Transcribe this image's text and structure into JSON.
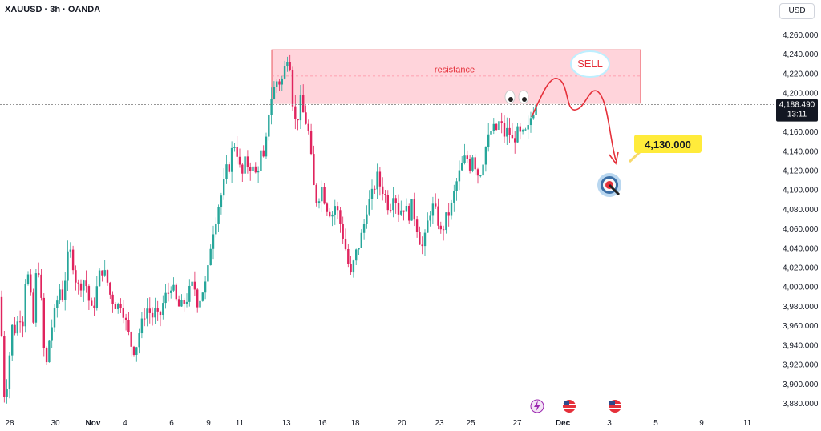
{
  "header": {
    "symbol": "XAUUSD · 3h · OANDA",
    "currency": "USD"
  },
  "price_tag": {
    "price": "4,188.490",
    "countdown": "13:11"
  },
  "annotations": {
    "zone_label": "resistance",
    "bubble": "SELL",
    "target": "4,130.000",
    "eyes_icon": "eyes-emoji",
    "target_icon": "dart-target-emoji",
    "event_icons": [
      "lightning-icon",
      "us-flag-icon",
      "us-flag-icon"
    ]
  },
  "colors": {
    "up": "#26a69a",
    "down": "#e0245e",
    "zone": "#ffccd5",
    "zone_border": "#e5303a",
    "arrow": "#e5303a",
    "target_bg": "#ffeb3b"
  },
  "chart_data": {
    "type": "candlestick",
    "ylim": [
      3870,
      4275
    ],
    "y_ticks": [
      "4,260.000",
      "4,240.000",
      "4,220.000",
      "4,200.000",
      "4,180.000",
      "4,160.000",
      "4,140.000",
      "4,120.000",
      "4,100.000",
      "4,080.000",
      "4,060.000",
      "4,040.000",
      "4,020.000",
      "4,000.000",
      "3,980.000",
      "3,960.000",
      "3,940.000",
      "3,920.000",
      "3,900.000",
      "3,880.000"
    ],
    "x_ticks": [
      "28",
      "30",
      "Nov",
      "4",
      "6",
      "9",
      "11",
      "13",
      "16",
      "18",
      "20",
      "23",
      "25",
      "27",
      "Dec",
      "3",
      "5",
      "9",
      "11"
    ],
    "current_price": 4188.49,
    "resistance_zone": [
      4190,
      4245
    ],
    "target": 4130,
    "close_path": [
      [
        0,
        3990
      ],
      [
        5,
        3890
      ],
      [
        10,
        3905
      ],
      [
        14,
        3960
      ],
      [
        20,
        3955
      ],
      [
        24,
        3975
      ],
      [
        28,
        3960
      ],
      [
        33,
        4025
      ],
      [
        38,
        3990
      ],
      [
        42,
        3960
      ],
      [
        46,
        4030
      ],
      [
        50,
        4010
      ],
      [
        54,
        3940
      ],
      [
        58,
        3920
      ],
      [
        62,
        3950
      ],
      [
        66,
        3965
      ],
      [
        70,
        3980
      ],
      [
        74,
        4000
      ],
      [
        78,
        3990
      ],
      [
        82,
        4015
      ],
      [
        86,
        4040
      ],
      [
        90,
        4030
      ],
      [
        94,
        4010
      ],
      [
        98,
        4000
      ],
      [
        102,
        4005
      ],
      [
        106,
        4010
      ],
      [
        110,
        3990
      ],
      [
        114,
        3975
      ],
      [
        118,
        3985
      ],
      [
        122,
        4005
      ],
      [
        126,
        4020
      ],
      [
        130,
        4015
      ],
      [
        134,
        4005
      ],
      [
        138,
        3990
      ],
      [
        142,
        3985
      ],
      [
        146,
        3980
      ],
      [
        150,
        3985
      ],
      [
        154,
        3975
      ],
      [
        158,
        3960
      ],
      [
        162,
        3945
      ],
      [
        166,
        3935
      ],
      [
        170,
        3940
      ],
      [
        174,
        3955
      ],
      [
        178,
        3965
      ],
      [
        182,
        3980
      ],
      [
        186,
        3975
      ],
      [
        190,
        3970
      ],
      [
        194,
        3975
      ],
      [
        198,
        3965
      ],
      [
        202,
        3980
      ],
      [
        206,
        3990
      ],
      [
        210,
        3995
      ],
      [
        214,
        4005
      ],
      [
        218,
        3990
      ],
      [
        222,
        3980
      ],
      [
        226,
        3980
      ],
      [
        230,
        3985
      ],
      [
        234,
        3990
      ],
      [
        238,
        4000
      ],
      [
        242,
        4003
      ],
      [
        246,
        3985
      ],
      [
        250,
        3990
      ],
      [
        254,
        4000
      ],
      [
        258,
        4005
      ],
      [
        262,
        4040
      ],
      [
        266,
        4060
      ],
      [
        270,
        4075
      ],
      [
        274,
        4090
      ],
      [
        278,
        4100
      ],
      [
        282,
        4120
      ],
      [
        286,
        4125
      ],
      [
        290,
        4145
      ],
      [
        294,
        4150
      ],
      [
        298,
        4125
      ],
      [
        302,
        4115
      ],
      [
        306,
        4130
      ],
      [
        310,
        4125
      ],
      [
        314,
        4125
      ],
      [
        318,
        4115
      ],
      [
        322,
        4125
      ],
      [
        326,
        4140
      ],
      [
        330,
        4125
      ],
      [
        334,
        4175
      ],
      [
        338,
        4195
      ],
      [
        342,
        4205
      ],
      [
        346,
        4215
      ],
      [
        350,
        4210
      ],
      [
        354,
        4220
      ],
      [
        358,
        4240
      ],
      [
        362,
        4230
      ],
      [
        366,
        4180
      ],
      [
        370,
        4165
      ],
      [
        374,
        4195
      ],
      [
        378,
        4180
      ],
      [
        382,
        4170
      ],
      [
        386,
        4155
      ],
      [
        390,
        4110
      ],
      [
        394,
        4090
      ],
      [
        398,
        4095
      ],
      [
        402,
        4105
      ],
      [
        406,
        4085
      ],
      [
        410,
        4080
      ],
      [
        414,
        4075
      ],
      [
        418,
        4085
      ],
      [
        422,
        4075
      ],
      [
        426,
        4060
      ],
      [
        430,
        4045
      ],
      [
        434,
        4025
      ],
      [
        438,
        4010
      ],
      [
        442,
        4030
      ],
      [
        446,
        4040
      ],
      [
        450,
        4050
      ],
      [
        454,
        4065
      ],
      [
        458,
        4085
      ],
      [
        462,
        4090
      ],
      [
        466,
        4100
      ],
      [
        470,
        4115
      ],
      [
        474,
        4105
      ],
      [
        478,
        4100
      ],
      [
        482,
        4090
      ],
      [
        486,
        4080
      ],
      [
        490,
        4100
      ],
      [
        494,
        4090
      ],
      [
        498,
        4075
      ],
      [
        502,
        4085
      ],
      [
        506,
        4080
      ],
      [
        510,
        4075
      ],
      [
        514,
        4085
      ],
      [
        518,
        4070
      ],
      [
        522,
        4055
      ],
      [
        526,
        4040
      ],
      [
        530,
        4050
      ],
      [
        534,
        4070
      ],
      [
        538,
        4085
      ],
      [
        542,
        4080
      ],
      [
        546,
        4070
      ],
      [
        550,
        4055
      ],
      [
        554,
        4065
      ],
      [
        558,
        4075
      ],
      [
        562,
        4080
      ],
      [
        566,
        4095
      ],
      [
        570,
        4110
      ],
      [
        574,
        4120
      ],
      [
        578,
        4130
      ],
      [
        582,
        4135
      ],
      [
        586,
        4125
      ],
      [
        590,
        4140
      ],
      [
        594,
        4120
      ],
      [
        598,
        4115
      ],
      [
        602,
        4130
      ],
      [
        606,
        4145
      ],
      [
        610,
        4155
      ],
      [
        614,
        4165
      ],
      [
        618,
        4160
      ],
      [
        622,
        4170
      ],
      [
        626,
        4165
      ],
      [
        630,
        4155
      ],
      [
        634,
        4165
      ],
      [
        638,
        4150
      ],
      [
        642,
        4155
      ],
      [
        646,
        4160
      ],
      [
        650,
        4155
      ],
      [
        654,
        4158
      ],
      [
        658,
        4160
      ],
      [
        662,
        4175
      ],
      [
        666,
        4185
      ],
      [
        670,
        4188.49
      ]
    ]
  }
}
